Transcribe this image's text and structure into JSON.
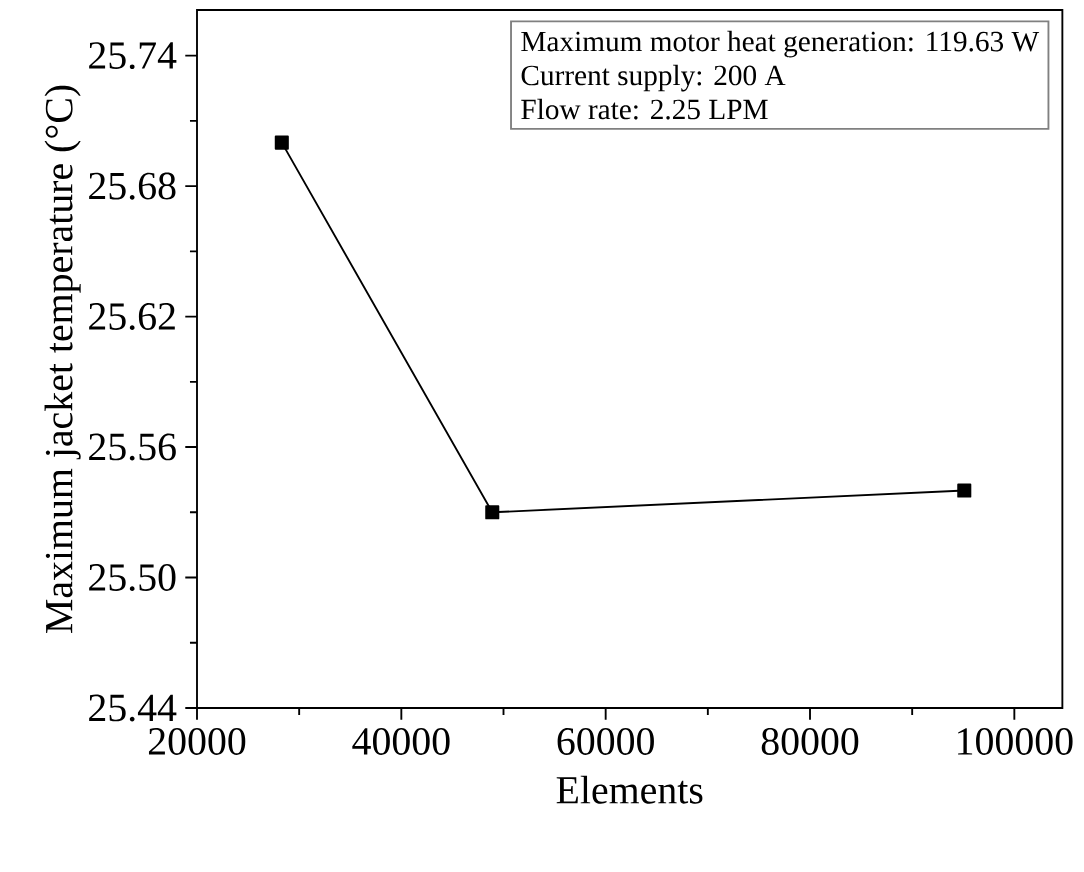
{
  "chart_data": {
    "type": "line",
    "xlabel": "Elements",
    "ylabel": "Maximum jacket temperature (°C)",
    "x": [
      28300,
      48900,
      95100
    ],
    "series": [
      {
        "color": "#000000",
        "values": [
          25.7,
          25.53,
          25.54
        ]
      }
    ],
    "marker": "square",
    "line_style": "solid",
    "xlim": [
      20000,
      104700
    ],
    "ylim": [
      25.44,
      25.761
    ],
    "xticks": [
      20000,
      40000,
      60000,
      80000,
      100000
    ],
    "yticks": [
      25.44,
      {
        "value": 25.5,
        "label": "25.50"
      },
      25.56,
      25.62,
      25.68,
      25.74
    ],
    "annotations": [
      "Maximum motor heat generation: 119.63 W",
      "Current supply: 200 A",
      "Flow rate: 2.25 LPM"
    ]
  }
}
